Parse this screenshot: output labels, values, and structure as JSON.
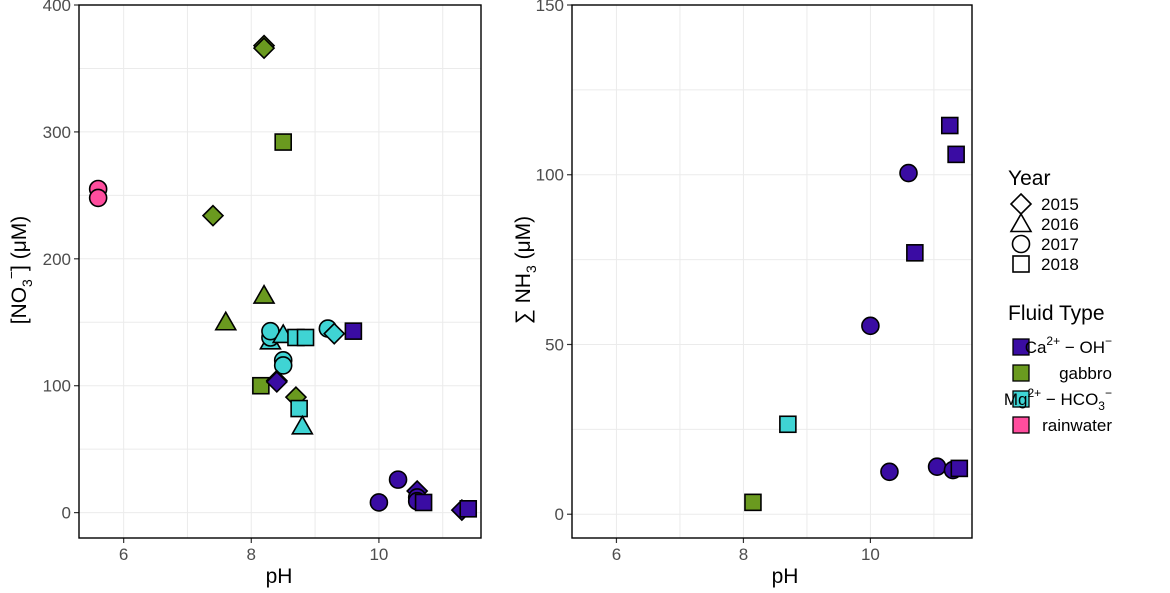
{
  "colors": {
    "Ca_OH": "#3a0ca3",
    "gabbro": "#6a9a1f",
    "Mg_HCO3": "#3fd4d4",
    "rainwater": "#ff4d9e"
  },
  "legend": {
    "year_title": "Year",
    "years": [
      {
        "label": "2015",
        "shape": "diamond"
      },
      {
        "label": "2016",
        "shape": "triangle"
      },
      {
        "label": "2017",
        "shape": "circle"
      },
      {
        "label": "2018",
        "shape": "square"
      }
    ],
    "fluid_title": "Fluid Type",
    "fluids": [
      {
        "key": "Ca_OH",
        "label": "Ca2+ − OH−"
      },
      {
        "key": "gabbro",
        "label": "gabbro"
      },
      {
        "key": "Mg_HCO3",
        "label": "Mg2+ − HCO3−"
      },
      {
        "key": "rainwater",
        "label": "rainwater"
      }
    ]
  },
  "chart_data": [
    {
      "type": "scatter",
      "xlabel": "pH",
      "ylabel": "[NO3−] (μM)",
      "xlim": [
        5.3,
        11.6
      ],
      "ylim": [
        -20,
        400
      ],
      "xticks": [
        6,
        8,
        10
      ],
      "yticks": [
        0,
        100,
        200,
        300,
        400
      ],
      "points": [
        {
          "x": 5.6,
          "y": 255,
          "shape": "circle",
          "fluid": "rainwater"
        },
        {
          "x": 5.6,
          "y": 248,
          "shape": "circle",
          "fluid": "rainwater"
        },
        {
          "x": 8.2,
          "y": 368,
          "shape": "diamond",
          "fluid": "gabbro"
        },
        {
          "x": 8.2,
          "y": 366,
          "shape": "diamond",
          "fluid": "gabbro"
        },
        {
          "x": 8.5,
          "y": 292,
          "shape": "square",
          "fluid": "gabbro"
        },
        {
          "x": 7.4,
          "y": 234,
          "shape": "diamond",
          "fluid": "gabbro"
        },
        {
          "x": 8.2,
          "y": 171,
          "shape": "triangle",
          "fluid": "gabbro"
        },
        {
          "x": 7.6,
          "y": 150,
          "shape": "triangle",
          "fluid": "gabbro"
        },
        {
          "x": 8.15,
          "y": 100,
          "shape": "square",
          "fluid": "gabbro"
        },
        {
          "x": 8.7,
          "y": 91,
          "shape": "diamond",
          "fluid": "gabbro"
        },
        {
          "x": 8.3,
          "y": 135,
          "shape": "triangle",
          "fluid": "Mg_HCO3"
        },
        {
          "x": 8.3,
          "y": 138,
          "shape": "circle",
          "fluid": "Mg_HCO3"
        },
        {
          "x": 8.3,
          "y": 143,
          "shape": "circle",
          "fluid": "Mg_HCO3"
        },
        {
          "x": 8.5,
          "y": 140,
          "shape": "triangle",
          "fluid": "Mg_HCO3"
        },
        {
          "x": 8.7,
          "y": 138,
          "shape": "square",
          "fluid": "Mg_HCO3"
        },
        {
          "x": 8.85,
          "y": 138,
          "shape": "square",
          "fluid": "Mg_HCO3"
        },
        {
          "x": 9.2,
          "y": 145,
          "shape": "circle",
          "fluid": "Mg_HCO3"
        },
        {
          "x": 9.3,
          "y": 141,
          "shape": "diamond",
          "fluid": "Mg_HCO3"
        },
        {
          "x": 8.5,
          "y": 120,
          "shape": "circle",
          "fluid": "Mg_HCO3"
        },
        {
          "x": 8.5,
          "y": 116,
          "shape": "circle",
          "fluid": "Mg_HCO3"
        },
        {
          "x": 8.4,
          "y": 104,
          "shape": "diamond",
          "fluid": "Mg_HCO3"
        },
        {
          "x": 8.75,
          "y": 82,
          "shape": "square",
          "fluid": "Mg_HCO3"
        },
        {
          "x": 8.8,
          "y": 68,
          "shape": "triangle",
          "fluid": "Mg_HCO3"
        },
        {
          "x": 9.6,
          "y": 143,
          "shape": "square",
          "fluid": "Ca_OH"
        },
        {
          "x": 8.4,
          "y": 103,
          "shape": "diamond",
          "fluid": "Ca_OH"
        },
        {
          "x": 10.0,
          "y": 8,
          "shape": "circle",
          "fluid": "Ca_OH"
        },
        {
          "x": 10.3,
          "y": 26,
          "shape": "circle",
          "fluid": "Ca_OH"
        },
        {
          "x": 10.6,
          "y": 17,
          "shape": "diamond",
          "fluid": "Ca_OH"
        },
        {
          "x": 10.6,
          "y": 12,
          "shape": "circle",
          "fluid": "Ca_OH"
        },
        {
          "x": 10.6,
          "y": 9,
          "shape": "circle",
          "fluid": "Ca_OH"
        },
        {
          "x": 10.7,
          "y": 8,
          "shape": "square",
          "fluid": "Ca_OH"
        },
        {
          "x": 11.3,
          "y": 2,
          "shape": "diamond",
          "fluid": "Ca_OH"
        },
        {
          "x": 11.4,
          "y": 3,
          "shape": "square",
          "fluid": "Ca_OH"
        }
      ]
    },
    {
      "type": "scatter",
      "xlabel": "pH",
      "ylabel": "∑ NH3 (μM)",
      "xlim": [
        5.3,
        11.6
      ],
      "ylim": [
        -7,
        150
      ],
      "xticks": [
        6,
        8,
        10
      ],
      "yticks": [
        0,
        50,
        100,
        150
      ],
      "points": [
        {
          "x": 8.15,
          "y": 3.5,
          "shape": "square",
          "fluid": "gabbro"
        },
        {
          "x": 8.7,
          "y": 26.5,
          "shape": "square",
          "fluid": "Mg_HCO3"
        },
        {
          "x": 10.0,
          "y": 55.5,
          "shape": "circle",
          "fluid": "Ca_OH"
        },
        {
          "x": 10.3,
          "y": 12.5,
          "shape": "circle",
          "fluid": "Ca_OH"
        },
        {
          "x": 10.6,
          "y": 100.5,
          "shape": "circle",
          "fluid": "Ca_OH"
        },
        {
          "x": 10.7,
          "y": 77,
          "shape": "square",
          "fluid": "Ca_OH"
        },
        {
          "x": 11.05,
          "y": 14,
          "shape": "circle",
          "fluid": "Ca_OH"
        },
        {
          "x": 11.25,
          "y": 114.5,
          "shape": "square",
          "fluid": "Ca_OH"
        },
        {
          "x": 11.35,
          "y": 106,
          "shape": "square",
          "fluid": "Ca_OH"
        },
        {
          "x": 11.3,
          "y": 13,
          "shape": "circle",
          "fluid": "Ca_OH"
        },
        {
          "x": 11.4,
          "y": 13.5,
          "shape": "square",
          "fluid": "Ca_OH"
        }
      ]
    }
  ]
}
